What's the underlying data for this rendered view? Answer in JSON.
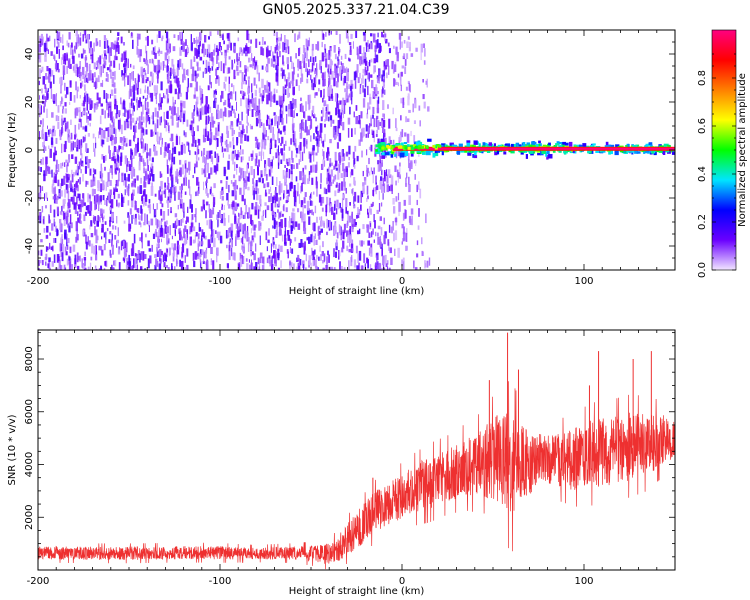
{
  "title": "GN05.2025.337.21.04.C39",
  "chart_data": [
    {
      "type": "heatmap",
      "title": "GN05.2025.337.21.04.C39",
      "xlabel": "Height of straight line (km)",
      "ylabel": "Frequency (Hz)",
      "xlim": [
        -200,
        150
      ],
      "ylim": [
        -50,
        50
      ],
      "x_ticks": [
        -200,
        -100,
        0,
        100
      ],
      "y_ticks": [
        -40,
        -20,
        0,
        20,
        40
      ],
      "noise_region_x": [
        -200,
        5
      ],
      "sparse_region_x": [
        -10,
        15
      ],
      "signal_band": {
        "x_start": -15,
        "x_end": 150,
        "frequency_hz": 0.5,
        "peak_amplitude": 1.0
      },
      "colorbar": {
        "label": "Normalized spectral amplitude",
        "range": [
          0,
          1
        ],
        "ticks": [
          0.0,
          0.2,
          0.4,
          0.6,
          0.8
        ],
        "colors": [
          "#f2e6ff",
          "#6a00ff",
          "#0000ff",
          "#00e5ff",
          "#00ff00",
          "#ffff00",
          "#ff8000",
          "#ff0000",
          "#ff0080"
        ]
      },
      "grid": false
    },
    {
      "type": "line",
      "xlabel": "Height of straight line (km)",
      "ylabel": "SNR (10 * v/v)",
      "xlim": [
        -200,
        150
      ],
      "ylim": [
        0,
        9100
      ],
      "x_ticks": [
        -200,
        -100,
        0,
        100
      ],
      "y_ticks": [
        2000,
        4000,
        6000,
        8000
      ],
      "series": [
        {
          "color": "#ee3030",
          "x": [
            -200,
            -180,
            -160,
            -140,
            -120,
            -100,
            -80,
            -60,
            -50,
            -40,
            -35,
            -25,
            -15,
            -5,
            5,
            15,
            25,
            35,
            45,
            50,
            55,
            60,
            65,
            70,
            75,
            80,
            85,
            95,
            105,
            115,
            125,
            135,
            145,
            150
          ],
          "y_center": [
            650,
            640,
            630,
            640,
            660,
            650,
            620,
            640,
            620,
            600,
            800,
            1500,
            2200,
            2600,
            3000,
            3300,
            3600,
            3900,
            4100,
            4200,
            4200,
            3900,
            3900,
            4000,
            4300,
            4200,
            4150,
            4200,
            4400,
            4500,
            4700,
            4800,
            5000,
            4950
          ],
          "y_spread": [
            250,
            250,
            250,
            250,
            250,
            250,
            220,
            250,
            300,
            400,
            500,
            700,
            800,
            800,
            900,
            1000,
            1000,
            1100,
            1300,
            1600,
            1900,
            2200,
            1700,
            1200,
            900,
            900,
            1000,
            1200,
            1300,
            1300,
            1300,
            1200,
            900,
            700
          ],
          "peak_points": [
            [
              -16,
              3500
            ],
            [
              48,
              7200
            ],
            [
              58,
              9000
            ],
            [
              64,
              7600
            ],
            [
              103,
              7000
            ],
            [
              108,
              8300
            ],
            [
              127,
              8000
            ],
            [
              137,
              8300
            ]
          ]
        }
      ],
      "grid": false
    }
  ]
}
